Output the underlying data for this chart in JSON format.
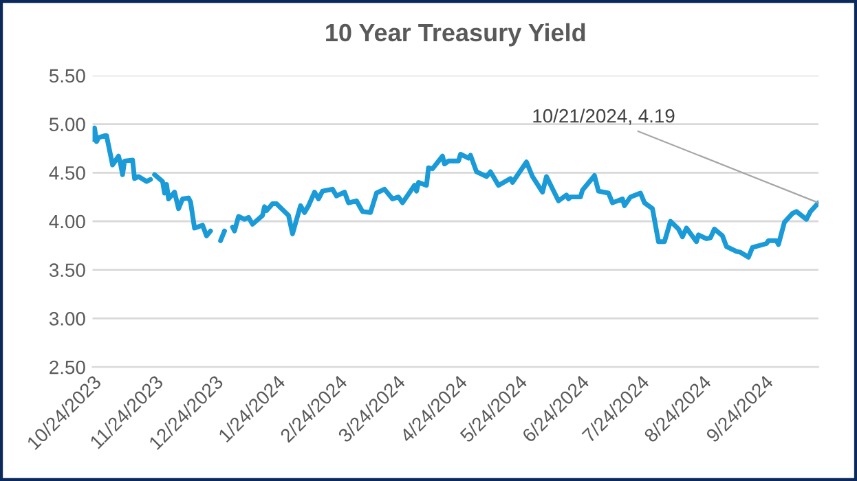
{
  "chart_data": {
    "type": "line",
    "title": "10 Year Treasury Yield",
    "x": [
      "2023-10-24",
      "2023-10-25",
      "2023-10-26",
      "2023-10-27",
      "2023-10-30",
      "2023-10-31",
      "2023-11-03",
      "2023-11-06",
      "2023-11-07",
      "2023-11-08",
      "2023-11-09",
      "2023-11-13",
      "2023-11-14",
      "2023-11-16",
      "2023-11-20",
      "2023-11-22",
      "2023-11-23",
      "2023-11-24",
      "2023-11-28",
      "2023-11-29",
      "2023-11-30",
      "2023-12-01",
      "2023-12-04",
      "2023-12-06",
      "2023-12-08",
      "2023-12-11",
      "2023-12-12",
      "2023-12-14",
      "2023-12-18",
      "2023-12-20",
      "2023-12-22",
      "2023-12-25",
      "2023-12-27",
      "2023-12-29",
      "2024-01-01",
      "2024-01-02",
      "2024-01-03",
      "2024-01-05",
      "2024-01-08",
      "2024-01-10",
      "2024-01-12",
      "2024-01-17",
      "2024-01-18",
      "2024-01-19",
      "2024-01-22",
      "2024-01-24",
      "2024-01-26",
      "2024-01-30",
      "2024-02-01",
      "2024-02-05",
      "2024-02-07",
      "2024-02-09",
      "2024-02-12",
      "2024-02-14",
      "2024-02-16",
      "2024-02-21",
      "2024-02-23",
      "2024-02-27",
      "2024-02-29",
      "2024-03-04",
      "2024-03-07",
      "2024-03-11",
      "2024-03-14",
      "2024-03-18",
      "2024-03-22",
      "2024-03-25",
      "2024-03-27",
      "2024-04-02",
      "2024-04-03",
      "2024-04-04",
      "2024-04-08",
      "2024-04-09",
      "2024-04-11",
      "2024-04-16",
      "2024-04-17",
      "2024-04-19",
      "2024-04-24",
      "2024-04-25",
      "2024-04-29",
      "2024-04-30",
      "2024-05-03",
      "2024-05-08",
      "2024-05-10",
      "2024-05-14",
      "2024-05-20",
      "2024-05-21",
      "2024-05-23",
      "2024-05-28",
      "2024-05-31",
      "2024-06-05",
      "2024-06-07",
      "2024-06-13",
      "2024-06-17",
      "2024-06-18",
      "2024-06-19",
      "2024-06-24",
      "2024-06-25",
      "2024-07-01",
      "2024-07-03",
      "2024-07-08",
      "2024-07-10",
      "2024-07-15",
      "2024-07-16",
      "2024-07-19",
      "2024-07-24",
      "2024-07-26",
      "2024-07-30",
      "2024-08-02",
      "2024-08-05",
      "2024-08-08",
      "2024-08-12",
      "2024-08-14",
      "2024-08-16",
      "2024-08-21",
      "2024-08-22",
      "2024-08-26",
      "2024-08-28",
      "2024-08-30",
      "2024-09-03",
      "2024-09-05",
      "2024-09-10",
      "2024-09-12",
      "2024-09-16",
      "2024-09-18",
      "2024-09-25",
      "2024-09-26",
      "2024-09-30",
      "2024-10-01",
      "2024-10-04",
      "2024-10-08",
      "2024-10-10",
      "2024-10-15",
      "2024-10-17",
      "2024-10-21"
    ],
    "values": [
      4.84,
      4.96,
      4.82,
      4.86,
      4.88,
      4.88,
      4.58,
      4.67,
      4.59,
      4.48,
      4.62,
      4.63,
      4.44,
      4.46,
      4.41,
      4.43,
      null,
      4.48,
      4.41,
      4.29,
      4.38,
      4.23,
      4.3,
      4.13,
      4.23,
      4.24,
      4.2,
      3.93,
      3.96,
      3.85,
      3.9,
      null,
      3.8,
      3.9,
      null,
      3.94,
      3.9,
      4.05,
      4.02,
      4.04,
      3.97,
      4.06,
      4.15,
      4.11,
      4.18,
      4.18,
      4.14,
      4.06,
      3.87,
      4.16,
      4.09,
      4.16,
      4.3,
      4.23,
      4.31,
      4.33,
      4.26,
      4.3,
      4.19,
      4.21,
      4.1,
      4.09,
      4.29,
      4.33,
      4.23,
      4.25,
      4.19,
      4.37,
      4.31,
      4.4,
      4.37,
      4.55,
      4.54,
      4.67,
      4.59,
      4.62,
      4.62,
      4.69,
      4.65,
      4.68,
      4.51,
      4.46,
      4.51,
      4.37,
      4.44,
      4.4,
      4.46,
      4.61,
      4.46,
      4.3,
      4.46,
      4.21,
      4.27,
      4.23,
      4.25,
      4.25,
      4.32,
      4.47,
      4.31,
      4.29,
      4.19,
      4.23,
      4.16,
      4.25,
      4.29,
      4.19,
      4.13,
      3.79,
      3.79,
      4.0,
      3.92,
      3.84,
      3.93,
      3.79,
      3.86,
      3.82,
      3.83,
      3.92,
      3.85,
      3.74,
      3.69,
      3.68,
      3.63,
      3.73,
      3.77,
      3.8,
      3.8,
      3.76,
      3.99,
      4.08,
      4.1,
      4.02,
      4.1,
      4.19
    ],
    "color": "#1a9ad6",
    "xlim": [
      "2023-10-24",
      "2024-10-21"
    ],
    "xticks": [
      {
        "value": "2023-10-24",
        "label": "10/24/2023"
      },
      {
        "value": "2023-11-24",
        "label": "11/24/2023"
      },
      {
        "value": "2023-12-24",
        "label": "12/24/2023"
      },
      {
        "value": "2024-01-24",
        "label": "1/24/2024"
      },
      {
        "value": "2024-02-24",
        "label": "2/24/2024"
      },
      {
        "value": "2024-03-24",
        "label": "3/24/2024"
      },
      {
        "value": "2024-04-24",
        "label": "4/24/2024"
      },
      {
        "value": "2024-05-24",
        "label": "5/24/2024"
      },
      {
        "value": "2024-06-24",
        "label": "6/24/2024"
      },
      {
        "value": "2024-07-24",
        "label": "7/24/2024"
      },
      {
        "value": "2024-08-24",
        "label": "8/24/2024"
      },
      {
        "value": "2024-09-24",
        "label": "9/24/2024"
      }
    ],
    "ylim": [
      2.5,
      5.5
    ],
    "yticks": [
      {
        "value": 2.5,
        "label": "2.50"
      },
      {
        "value": 3.0,
        "label": "3.00"
      },
      {
        "value": 3.5,
        "label": "3.50"
      },
      {
        "value": 4.0,
        "label": "4.00"
      },
      {
        "value": 4.5,
        "label": "4.50"
      },
      {
        "value": 5.0,
        "label": "5.00"
      },
      {
        "value": 5.5,
        "label": "5.50"
      }
    ],
    "grid": "y",
    "legend": false,
    "marker": "none",
    "line_style": "solid",
    "annotations": [
      {
        "text": "10/21/2024, 4.19",
        "x": "2024-10-21",
        "y": 4.19
      }
    ]
  }
}
